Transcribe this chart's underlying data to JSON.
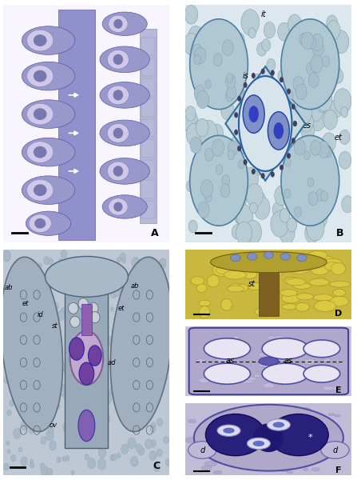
{
  "figure_bg": "#ffffff",
  "border_color": "#000000",
  "border_lw": 1.0,
  "label_fontsize": 9,
  "annot_fontsize": 7,
  "annot_color": "#000000",
  "label_color": "#000000",
  "panels": {
    "A": {
      "label": "A",
      "bg": "#f5f0fa"
    },
    "B": {
      "label": "B",
      "bg": "#e8eff4"
    },
    "C": {
      "label": "C",
      "bg": "#c8d0da"
    },
    "D": {
      "label": "D",
      "bg": "#d8c860"
    },
    "E": {
      "label": "E",
      "bg": "#ccc8dc"
    },
    "F": {
      "label": "F",
      "bg": "#c4c0d8"
    }
  }
}
